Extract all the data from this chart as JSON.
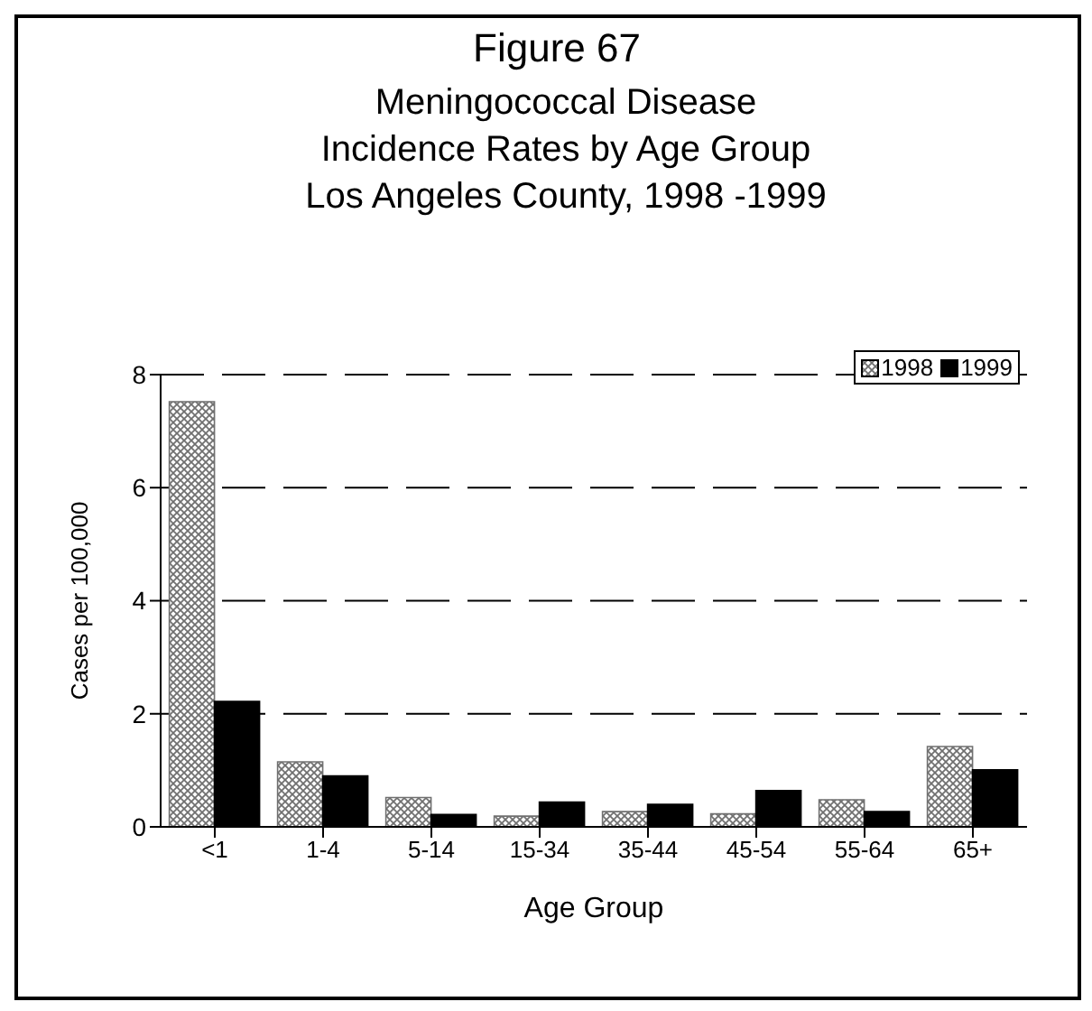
{
  "chart_data": {
    "type": "bar",
    "title": "Figure 67",
    "subtitle": "Meningococcal Disease\nIncidence Rates by Age Group\nLos Angeles County, 1998 -1999",
    "xlabel": "Age Group",
    "ylabel": "Cases per 100,000",
    "categories": [
      "<1",
      "1-4",
      "5-14",
      "15-34",
      "35-44",
      "45-54",
      "55-64",
      "65+"
    ],
    "series": [
      {
        "name": "1998",
        "color": "#707070",
        "values": [
          7.52,
          1.15,
          0.52,
          0.19,
          0.27,
          0.23,
          0.48,
          1.42
        ]
      },
      {
        "name": "1999",
        "color": "#000000",
        "values": [
          2.22,
          0.9,
          0.22,
          0.44,
          0.4,
          0.64,
          0.27,
          1.01
        ]
      }
    ],
    "ylim": [
      0,
      8
    ],
    "yticks": [
      0,
      2,
      4,
      6,
      8
    ],
    "grid": "y",
    "legend": "top right"
  }
}
